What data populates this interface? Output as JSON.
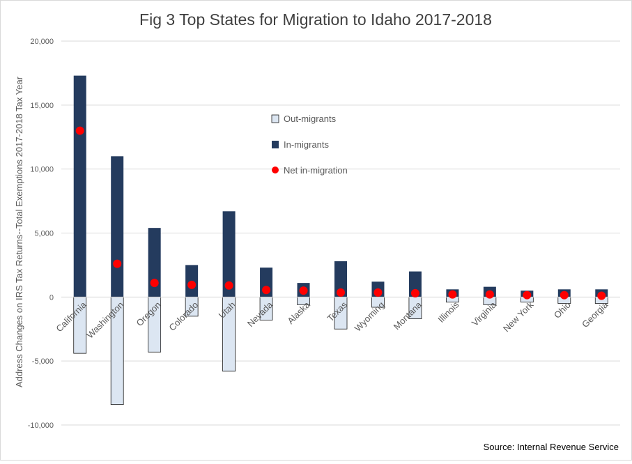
{
  "chart_data": {
    "type": "bar",
    "title": "Fig 3 Top States for Migration to Idaho 2017-2018",
    "ylabel": "Address Changes on IRS Tax Returns--Total Exemptions 2017-2018 Tax Year",
    "xlabel": "",
    "source": "Source: Internal Revenue Service",
    "ylim": [
      -10000,
      20000
    ],
    "yticks": [
      20000,
      15000,
      10000,
      5000,
      0,
      -5000,
      -10000
    ],
    "ytick_labels": [
      "20,000",
      "15,000",
      "10,000",
      "5,000",
      "0",
      "-5,000",
      "-10,000"
    ],
    "grid": true,
    "legend_position": "center",
    "categories": [
      "California",
      "Washington",
      "Oregon",
      "Colorado",
      "Utah",
      "Nevada",
      "Alaska",
      "Texas",
      "Wyoming",
      "Montana",
      "Illinois",
      "Virginia",
      "New York",
      "Ohio",
      "Georgia"
    ],
    "series": [
      {
        "name": "Out-migrants",
        "kind": "bar",
        "color": "#dce6f2",
        "values": [
          -4400,
          -8400,
          -4300,
          -1500,
          -5800,
          -1800,
          -600,
          -2500,
          -800,
          -1700,
          -400,
          -600,
          -400,
          -500,
          -500
        ]
      },
      {
        "name": "In-migrants",
        "kind": "bar",
        "color": "#243b5e",
        "values": [
          17300,
          11000,
          5400,
          2500,
          6700,
          2300,
          1100,
          2800,
          1200,
          2000,
          600,
          800,
          500,
          600,
          600
        ]
      },
      {
        "name": "Net in-migration",
        "kind": "point",
        "color": "#ff0000",
        "values": [
          13000,
          2600,
          1100,
          950,
          900,
          550,
          500,
          350,
          350,
          300,
          200,
          200,
          150,
          150,
          100
        ]
      }
    ]
  }
}
